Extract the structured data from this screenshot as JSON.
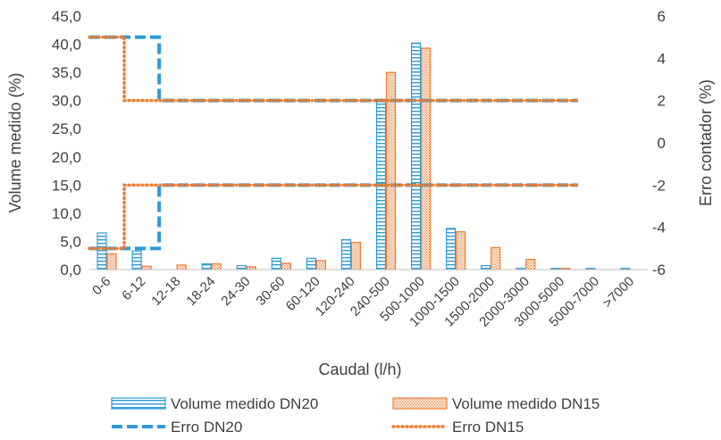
{
  "chart_data": {
    "type": "bar",
    "title": "",
    "xlabel": "Caudal (l/h)",
    "ylabel": "Volume medido (%)",
    "y2label": "Erro contador (%)",
    "categories": [
      "0-6",
      "6-12",
      "12-18",
      "18-24",
      "24-30",
      "30-60",
      "60-120",
      "120-240",
      "240-500",
      "500-1000",
      "1000-1500",
      "1500-2000",
      "2000-3000",
      "3000-5000",
      "5000-7000",
      ">7000"
    ],
    "ylim": [
      0,
      45
    ],
    "yticks": [
      "0,0",
      "5,0",
      "10,0",
      "15,0",
      "20,0",
      "25,0",
      "30,0",
      "35,0",
      "40,0",
      "45,0"
    ],
    "y2lim": [
      -6,
      6
    ],
    "y2ticks": [
      "-6",
      "-4",
      "-2",
      "0",
      "2",
      "4",
      "6"
    ],
    "grid": false,
    "legend_position": "bottom",
    "series": [
      {
        "name": "Volume medido DN20",
        "kind": "bar",
        "axis": "left",
        "color": "#2e9bd6",
        "values": [
          6.5,
          3.3,
          0.0,
          1.0,
          0.7,
          2.0,
          2.0,
          5.3,
          30.0,
          40.2,
          7.3,
          0.7,
          0.2,
          0.2,
          0.2,
          0.2
        ]
      },
      {
        "name": "Volume medido DN15",
        "kind": "bar",
        "axis": "left",
        "color": "#ed7d31",
        "values": [
          2.8,
          0.6,
          0.8,
          1.0,
          0.5,
          1.1,
          1.6,
          4.8,
          35.0,
          39.3,
          6.7,
          3.9,
          1.8,
          0.2,
          0.0,
          0.0
        ]
      },
      {
        "name": "Erro DN20",
        "kind": "step",
        "axis": "right",
        "color": "#2e9bd6",
        "dash": "dashed",
        "upper": {
          "values": [
            5,
            5,
            2
          ],
          "end_category": "3000-5000"
        },
        "lower": {
          "values": [
            -5,
            -5,
            -2
          ],
          "end_category": "3000-5000"
        }
      },
      {
        "name": "Erro DN15",
        "kind": "step",
        "axis": "right",
        "color": "#ed7d31",
        "dash": "dotted",
        "upper": {
          "values": [
            5,
            2,
            2
          ],
          "end_category": "3000-5000"
        },
        "lower": {
          "values": [
            -5,
            -2,
            -2
          ],
          "end_category": "3000-5000"
        }
      }
    ]
  }
}
